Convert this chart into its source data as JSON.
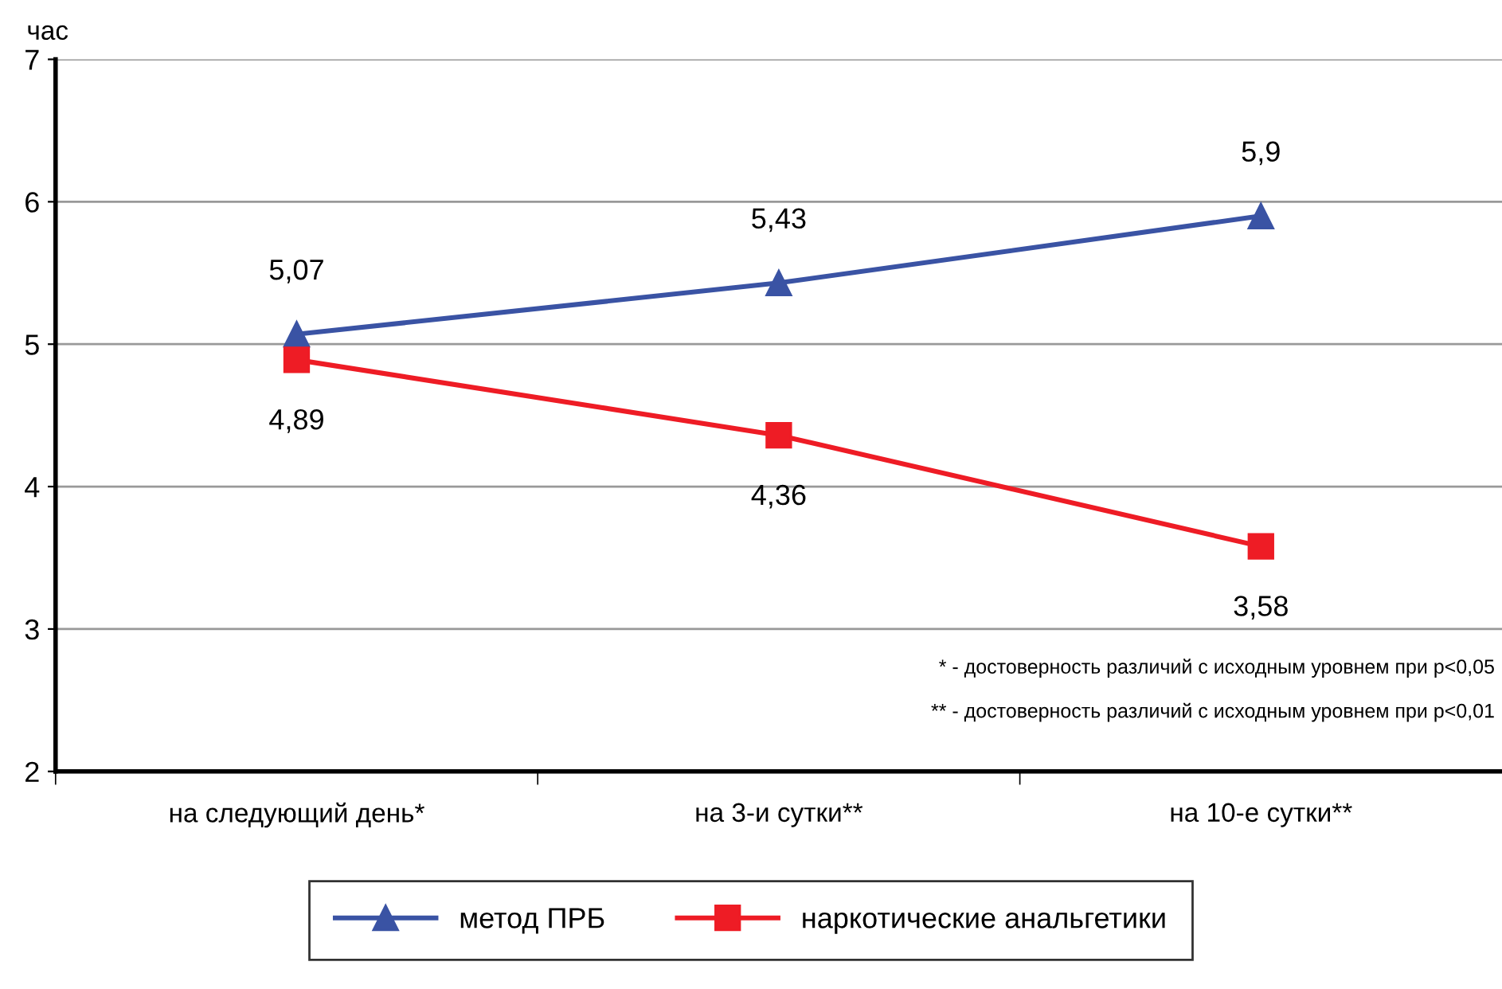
{
  "chart_data": {
    "type": "line",
    "ylabel": "час",
    "categories": [
      "на следующий день*",
      "на 3-и сутки**",
      "на 10-е сутки**"
    ],
    "series": [
      {
        "name": "метод ПРБ",
        "color": "#3a53a4",
        "values": [
          5.07,
          5.43,
          5.9
        ],
        "value_labels": [
          "5,07",
          "5,43",
          "5,9"
        ],
        "marker": "triangle"
      },
      {
        "name": "наркотические анальгетики",
        "color": "#ee1c25",
        "values": [
          4.89,
          4.36,
          3.58
        ],
        "value_labels": [
          "4,89",
          "4,36",
          "3,58"
        ],
        "marker": "square"
      }
    ],
    "ylim": [
      2,
      7
    ],
    "yticks": [
      2,
      3,
      4,
      5,
      6,
      7
    ],
    "grid": "y",
    "legend": "bottom",
    "line_style": "solid",
    "annotations": [
      "* - достоверность различий с исходным уровнем при p<0,05",
      "** - достоверность различий с исходным уровнем при p<0,01"
    ]
  }
}
